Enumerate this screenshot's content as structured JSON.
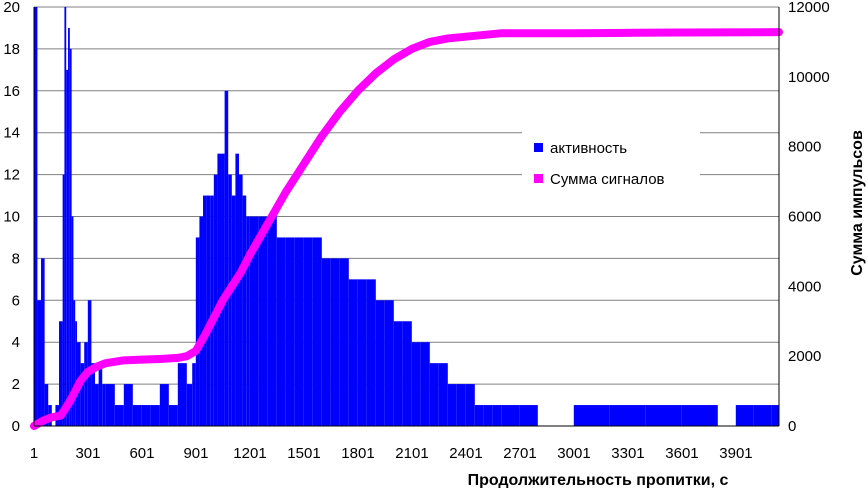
{
  "chart_data": {
    "type": "bar",
    "title": "",
    "xlabel": "Продолжительность пропитки, с",
    "ylabel_left": "",
    "ylabel_right": "Сумма импульсов",
    "x_range": [
      1,
      4140
    ],
    "ylim_left": [
      0,
      20
    ],
    "ylim_right": [
      0,
      12000
    ],
    "x_ticks": [
      "1",
      "301",
      "601",
      "901",
      "1201",
      "1501",
      "1801",
      "2101",
      "2401",
      "2701",
      "3001",
      "3301",
      "3601",
      "3901"
    ],
    "y_left_ticks": [
      "0",
      "2",
      "4",
      "6",
      "8",
      "10",
      "12",
      "14",
      "16",
      "18",
      "20"
    ],
    "y_right_ticks": [
      "0",
      "2000",
      "4000",
      "6000",
      "8000",
      "10000",
      "12000"
    ],
    "grid": true,
    "legend_position": "right",
    "series": [
      {
        "name": "активность",
        "type": "bar",
        "axis": "left",
        "color": "#0000ff",
        "x": [
          1,
          20,
          40,
          60,
          80,
          100,
          120,
          140,
          160,
          170,
          180,
          190,
          200,
          210,
          220,
          230,
          240,
          260,
          280,
          300,
          320,
          340,
          360,
          380,
          400,
          450,
          500,
          550,
          600,
          650,
          700,
          750,
          800,
          850,
          880,
          900,
          920,
          940,
          960,
          980,
          1000,
          1020,
          1040,
          1060,
          1080,
          1100,
          1120,
          1140,
          1160,
          1180,
          1200,
          1250,
          1300,
          1350,
          1400,
          1450,
          1500,
          1550,
          1600,
          1650,
          1700,
          1750,
          1800,
          1850,
          1900,
          1950,
          2000,
          2050,
          2100,
          2150,
          2200,
          2250,
          2300,
          2350,
          2400,
          2450,
          2500,
          2550,
          2600,
          2700,
          2800,
          3000,
          3200,
          3400,
          3600,
          3800,
          3900,
          4000,
          4100
        ],
        "values": [
          20,
          6,
          8,
          2,
          1,
          0,
          1,
          5,
          12,
          20,
          17,
          19,
          18,
          10,
          6,
          5,
          4,
          3,
          4,
          6,
          3,
          2,
          3,
          2,
          2,
          1,
          2,
          1,
          1,
          1,
          2,
          1,
          3,
          2,
          3,
          9,
          10,
          11,
          11,
          11,
          12,
          13,
          13,
          16,
          12,
          11,
          13,
          12,
          11,
          10,
          10,
          10,
          10,
          9,
          9,
          9,
          9,
          9,
          8,
          8,
          8,
          7,
          7,
          7,
          6,
          6,
          5,
          5,
          4,
          4,
          3,
          3,
          2,
          2,
          2,
          1,
          1,
          1,
          1,
          1,
          0,
          1,
          1,
          1,
          1,
          0,
          1,
          1,
          1
        ]
      },
      {
        "name": "Сумма сигналов",
        "type": "line",
        "axis": "right",
        "color": "#ff00ff",
        "x": [
          1,
          50,
          100,
          150,
          200,
          230,
          260,
          300,
          350,
          400,
          500,
          600,
          700,
          800,
          850,
          900,
          950,
          1000,
          1050,
          1100,
          1150,
          1200,
          1300,
          1400,
          1500,
          1600,
          1700,
          1800,
          1900,
          2000,
          2100,
          2200,
          2300,
          2400,
          2500,
          2600,
          2700,
          2800,
          3000,
          3300,
          3600,
          4140
        ],
        "values": [
          0,
          150,
          250,
          300,
          700,
          1000,
          1300,
          1550,
          1700,
          1800,
          1880,
          1900,
          1920,
          1950,
          2000,
          2150,
          2600,
          3100,
          3600,
          4000,
          4400,
          4900,
          5800,
          6700,
          7500,
          8300,
          9000,
          9600,
          10100,
          10500,
          10800,
          11000,
          11100,
          11150,
          11200,
          11250,
          11250,
          11250,
          11250,
          11260,
          11270,
          11280
        ]
      }
    ]
  }
}
